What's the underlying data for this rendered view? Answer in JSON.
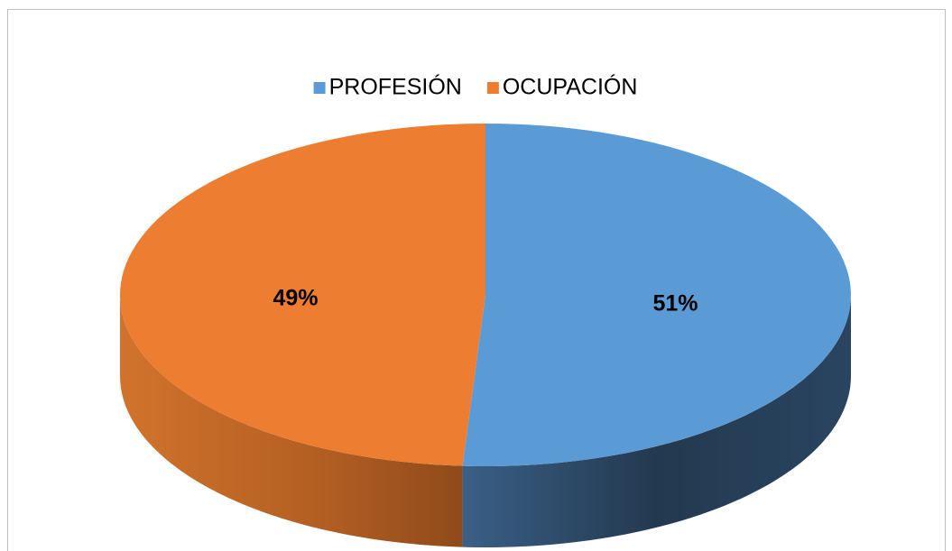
{
  "chart_data": {
    "type": "pie",
    "categories": [
      "PROFESIÓN",
      "OCUPACIÓN"
    ],
    "values": [
      51,
      49
    ],
    "value_labels": [
      "51%",
      "49%"
    ],
    "colors": [
      "#5b9bd5",
      "#ed7d31"
    ],
    "legend": "top"
  }
}
